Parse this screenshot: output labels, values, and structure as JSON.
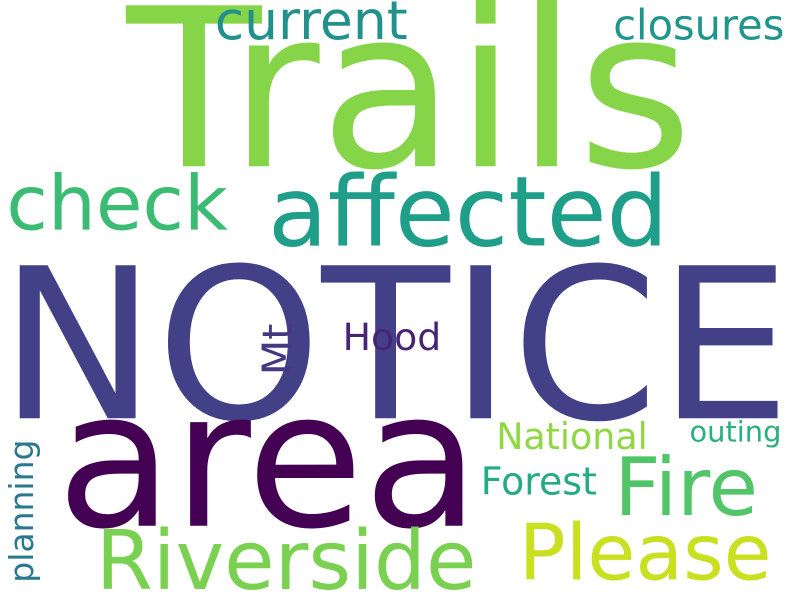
{
  "words": [
    {
      "text": "Trails",
      "color": "#86d549",
      "rotated": false
    },
    {
      "text": "current",
      "color": "#22918c",
      "rotated": false
    },
    {
      "text": "closures",
      "color": "#1f958b",
      "rotated": false
    },
    {
      "text": "check",
      "color": "#3cbb75",
      "rotated": false
    },
    {
      "text": "affected",
      "color": "#1f9e89",
      "rotated": false
    },
    {
      "text": "NOTICE",
      "color": "#424086",
      "rotated": false
    },
    {
      "text": "Mt",
      "color": "#453781",
      "rotated": true
    },
    {
      "text": "Hood",
      "color": "#482475",
      "rotated": false
    },
    {
      "text": "area",
      "color": "#440154",
      "rotated": false
    },
    {
      "text": "planning",
      "color": "#2a788e",
      "rotated": true
    },
    {
      "text": "National",
      "color": "#8fd744",
      "rotated": false
    },
    {
      "text": "outing",
      "color": "#2ab07f",
      "rotated": false
    },
    {
      "text": "Fire",
      "color": "#52c569",
      "rotated": false
    },
    {
      "text": "Forest",
      "color": "#25ab82",
      "rotated": false
    },
    {
      "text": "Riverside",
      "color": "#7ad151",
      "rotated": false
    },
    {
      "text": "Please",
      "color": "#c8e020",
      "rotated": false
    }
  ]
}
